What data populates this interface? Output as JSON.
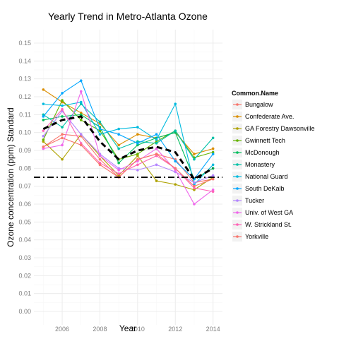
{
  "chart_data": {
    "type": "line",
    "title": "Yearly Trend in Metro-Atlanta Ozone",
    "xlabel": "Year",
    "ylabel": "Ozone concentration (ppm) Standard",
    "x_ticks": [
      "2006",
      "2008",
      "2010",
      "2012",
      "2014"
    ],
    "y_ticks": [
      "0.00",
      "0.01",
      "0.02",
      "0.03",
      "0.04",
      "0.05",
      "0.06",
      "0.07",
      "0.08",
      "0.09",
      "0.10",
      "0.11",
      "0.12",
      "0.13",
      "0.14",
      "0.15"
    ],
    "xlim": [
      2004.5,
      2014.5
    ],
    "ylim": [
      -0.0075,
      0.1575
    ],
    "x": [
      2005,
      2006,
      2007,
      2008,
      2009,
      2010,
      2011,
      2012,
      2013,
      2014
    ],
    "legend_title": "Common.Name",
    "legend_position": "right",
    "series": [
      {
        "name": "Bungalow",
        "color": "#F8766D",
        "values": [
          0.092,
          0.099,
          0.098,
          0.085,
          0.075,
          0.085,
          0.088,
          0.085,
          0.072,
          0.074
        ]
      },
      {
        "name": "Confederate Ave.",
        "color": "#DB8E00",
        "values": [
          0.124,
          0.117,
          0.111,
          0.105,
          0.093,
          0.099,
          0.097,
          0.1,
          0.088,
          0.091
        ]
      },
      {
        "name": "GA Forestry Dawsonville",
        "color": "#AEA200",
        "values": [
          0.095,
          0.085,
          0.099,
          0.087,
          0.076,
          0.087,
          0.073,
          0.071,
          0.068,
          0.075
        ]
      },
      {
        "name": "Gwinnett Tech",
        "color": "#64B200",
        "values": [
          0.096,
          0.118,
          0.107,
          0.101,
          0.085,
          0.088,
          0.095,
          0.101,
          0.086,
          0.089
        ]
      },
      {
        "name": "McDonough",
        "color": "#00BD5C",
        "values": [
          0.107,
          0.109,
          0.11,
          0.103,
          0.083,
          0.093,
          0.097,
          0.1,
          0.074,
          0.08
        ]
      },
      {
        "name": "Monastery",
        "color": "#00C1A7",
        "values": [
          0.11,
          0.103,
          0.116,
          0.106,
          0.091,
          0.095,
          0.094,
          0.101,
          0.085,
          0.097
        ]
      },
      {
        "name": "National Guard",
        "color": "#00BADE",
        "values": [
          0.116,
          0.115,
          0.117,
          0.099,
          0.102,
          0.103,
          0.096,
          0.116,
          0.071,
          0.082
        ]
      },
      {
        "name": "South DeKalb",
        "color": "#00A6FF",
        "values": [
          0.109,
          0.122,
          0.129,
          0.102,
          0.099,
          0.094,
          0.099,
          0.084,
          0.074,
          0.088
        ]
      },
      {
        "name": "Tucker",
        "color": "#B385FF",
        "values": [
          0.098,
          0.112,
          0.099,
          0.088,
          0.08,
          0.079,
          0.082,
          0.078,
          0.072,
          0.076
        ]
      },
      {
        "name": "Univ. of West GA",
        "color": "#EF67EB",
        "values": [
          0.091,
          0.093,
          0.123,
          0.087,
          0.079,
          0.084,
          0.091,
          0.079,
          0.06,
          0.068
        ]
      },
      {
        "name": "W. Strickland St.",
        "color": "#FF63B6",
        "values": [
          0.101,
          0.113,
          0.094,
          0.083,
          0.077,
          0.082,
          0.087,
          0.08,
          0.069,
          0.067
        ]
      },
      {
        "name": "Yorkville",
        "color": "#F8766D",
        "values": [
          0.092,
          0.097,
          0.093,
          0.082,
          0.075,
          0.085,
          0.088,
          0.08,
          0.07,
          0.074
        ]
      }
    ],
    "mean_line": {
      "style": "dashed-black",
      "values": [
        0.102,
        0.107,
        0.109,
        0.095,
        0.085,
        0.09,
        0.092,
        0.089,
        0.074,
        0.08
      ]
    },
    "standard_line": {
      "style": "dash-dot-black",
      "value": 0.075
    },
    "grid": true
  }
}
